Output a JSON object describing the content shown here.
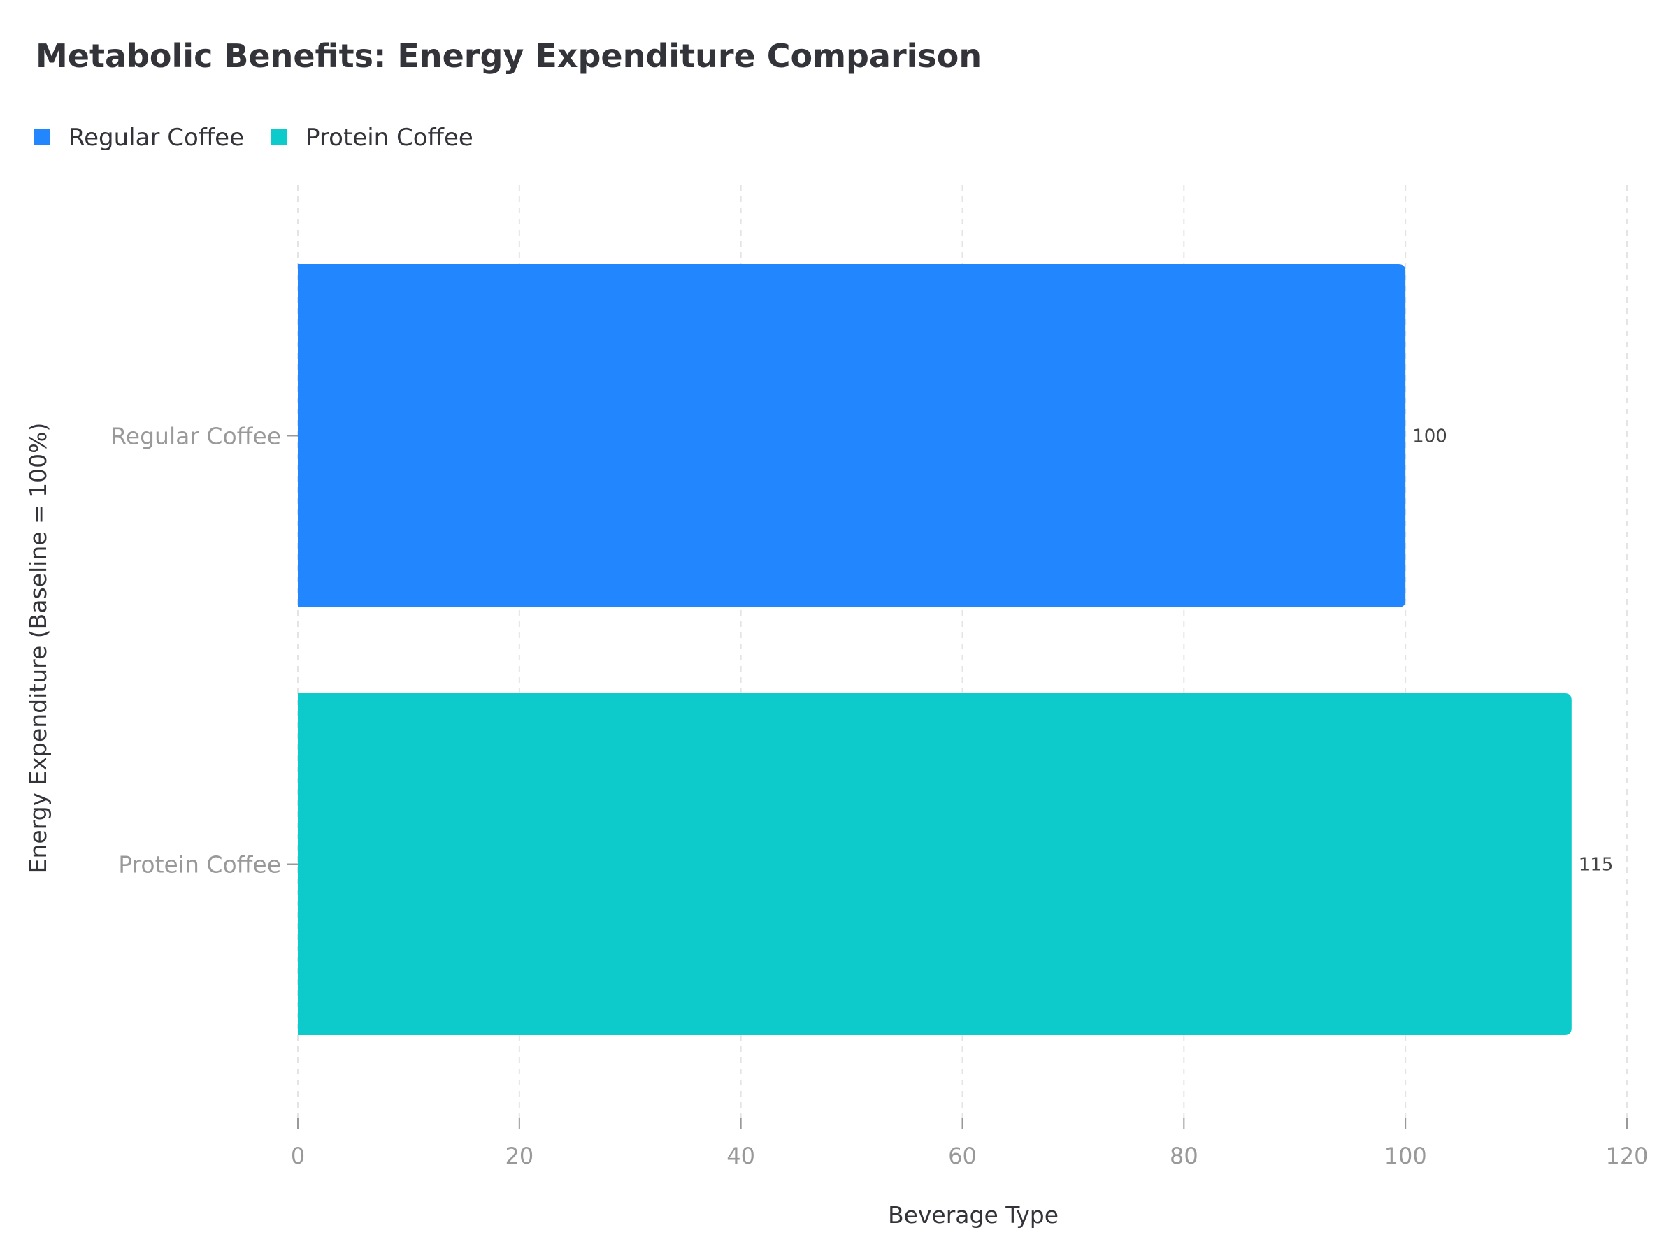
{
  "chart_data": {
    "type": "bar",
    "orientation": "horizontal",
    "title": "Metabolic Benefits: Energy Expenditure Comparison",
    "xlabel": "Beverage Type",
    "ylabel": "Energy Expenditure (Baseline = 100%)",
    "categories": [
      "Regular Coffee",
      "Protein Coffee"
    ],
    "values": [
      100,
      115
    ],
    "value_labels": [
      "100",
      "115"
    ],
    "colors": [
      "#2287ff",
      "#0ccbca"
    ],
    "legend": [
      "Regular Coffee",
      "Protein Coffee"
    ],
    "legend_placement": "top-left",
    "xlim": [
      0,
      120
    ],
    "xticks": [
      0,
      20,
      40,
      60,
      80,
      100,
      120
    ],
    "xtick_labels": [
      "0",
      "20",
      "40",
      "60",
      "80",
      "100",
      "120"
    ],
    "grid": "vertical dashed"
  }
}
